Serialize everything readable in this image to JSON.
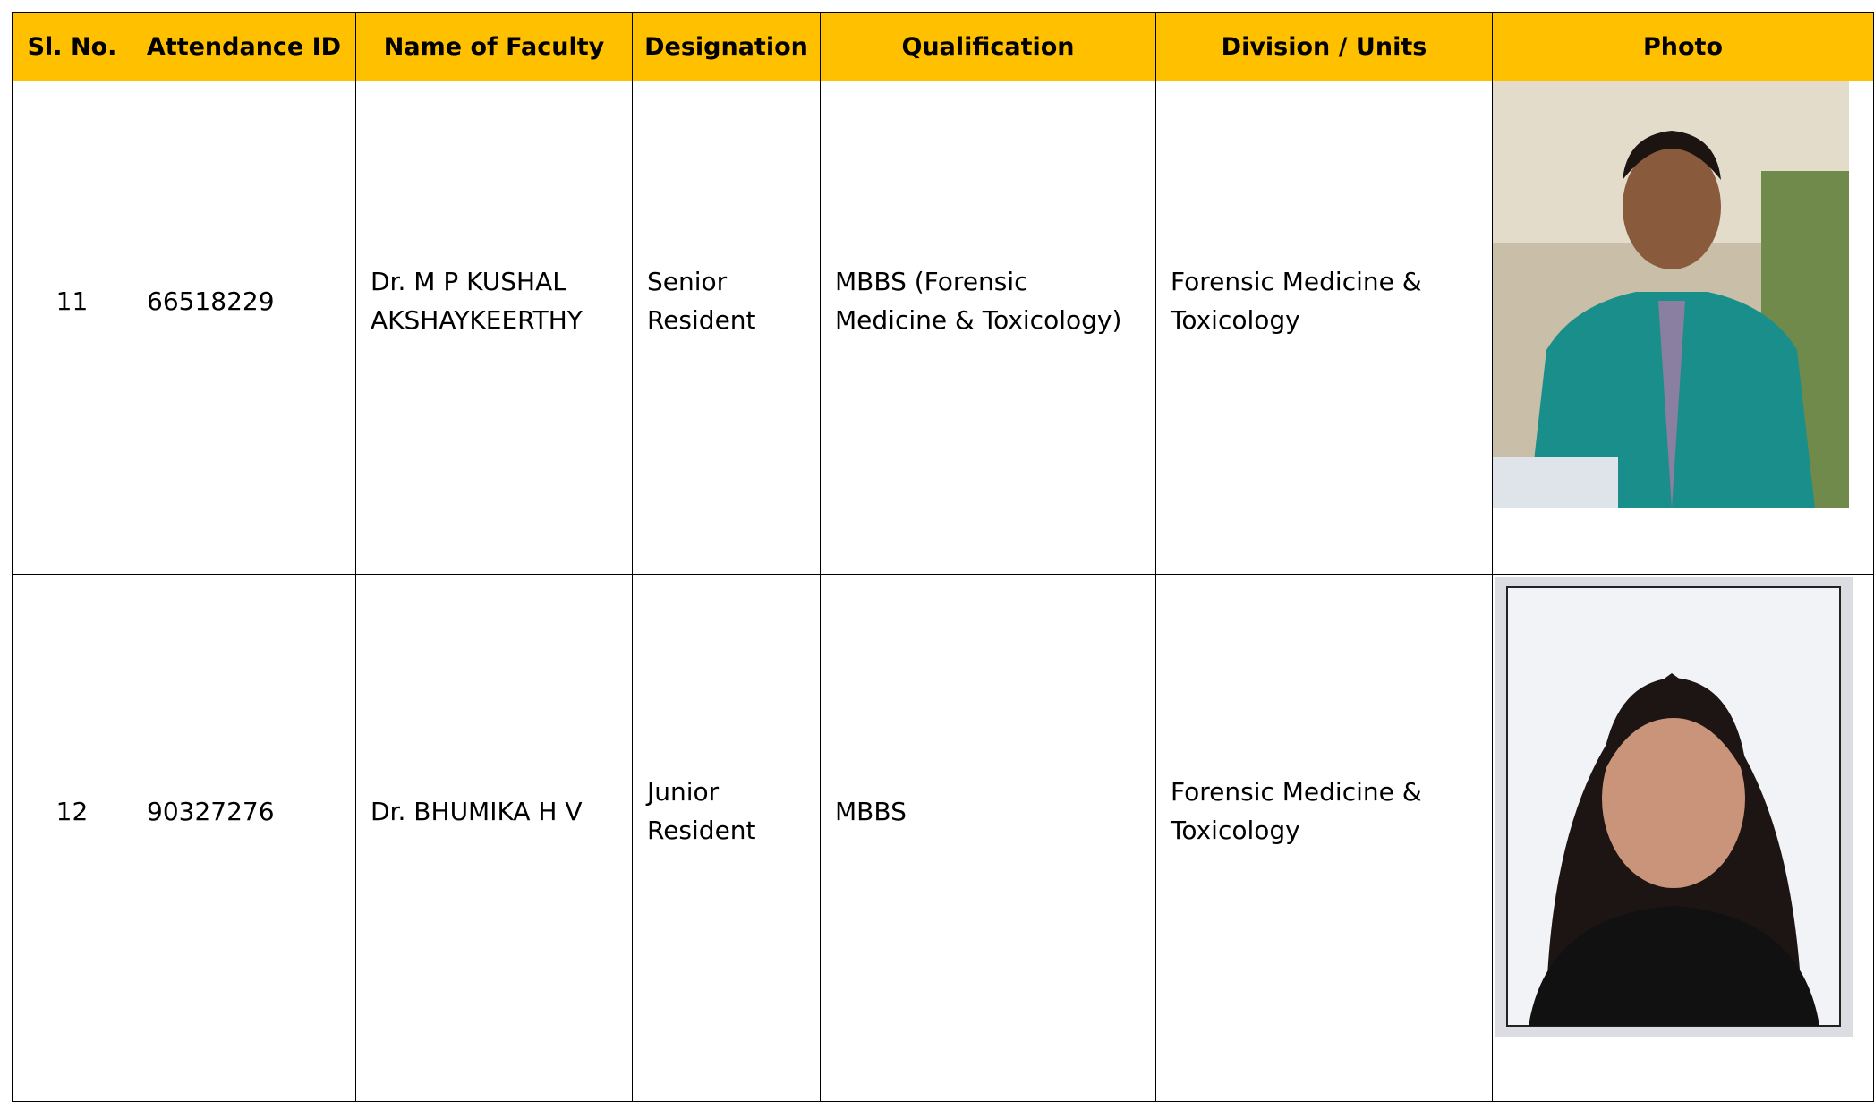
{
  "table": {
    "headers": [
      "Sl. No.",
      "Attendance ID",
      "Name of Faculty",
      "Designation",
      "Qualification",
      "Division / Units",
      "Photo"
    ],
    "rows": [
      [
        "11",
        "66518229",
        "Dr. M P KUSHAL AKSHAYKEERTHY",
        "Senior Resident",
        "MBBS (Forensic Medicine & Toxicology)",
        "Forensic Medicine & Toxicology"
      ],
      [
        "12",
        "90327276",
        "Dr. BHUMIKA H V",
        "Junior Resident",
        "MBBS",
        "Forensic Medicine & Toxicology"
      ]
    ]
  }
}
